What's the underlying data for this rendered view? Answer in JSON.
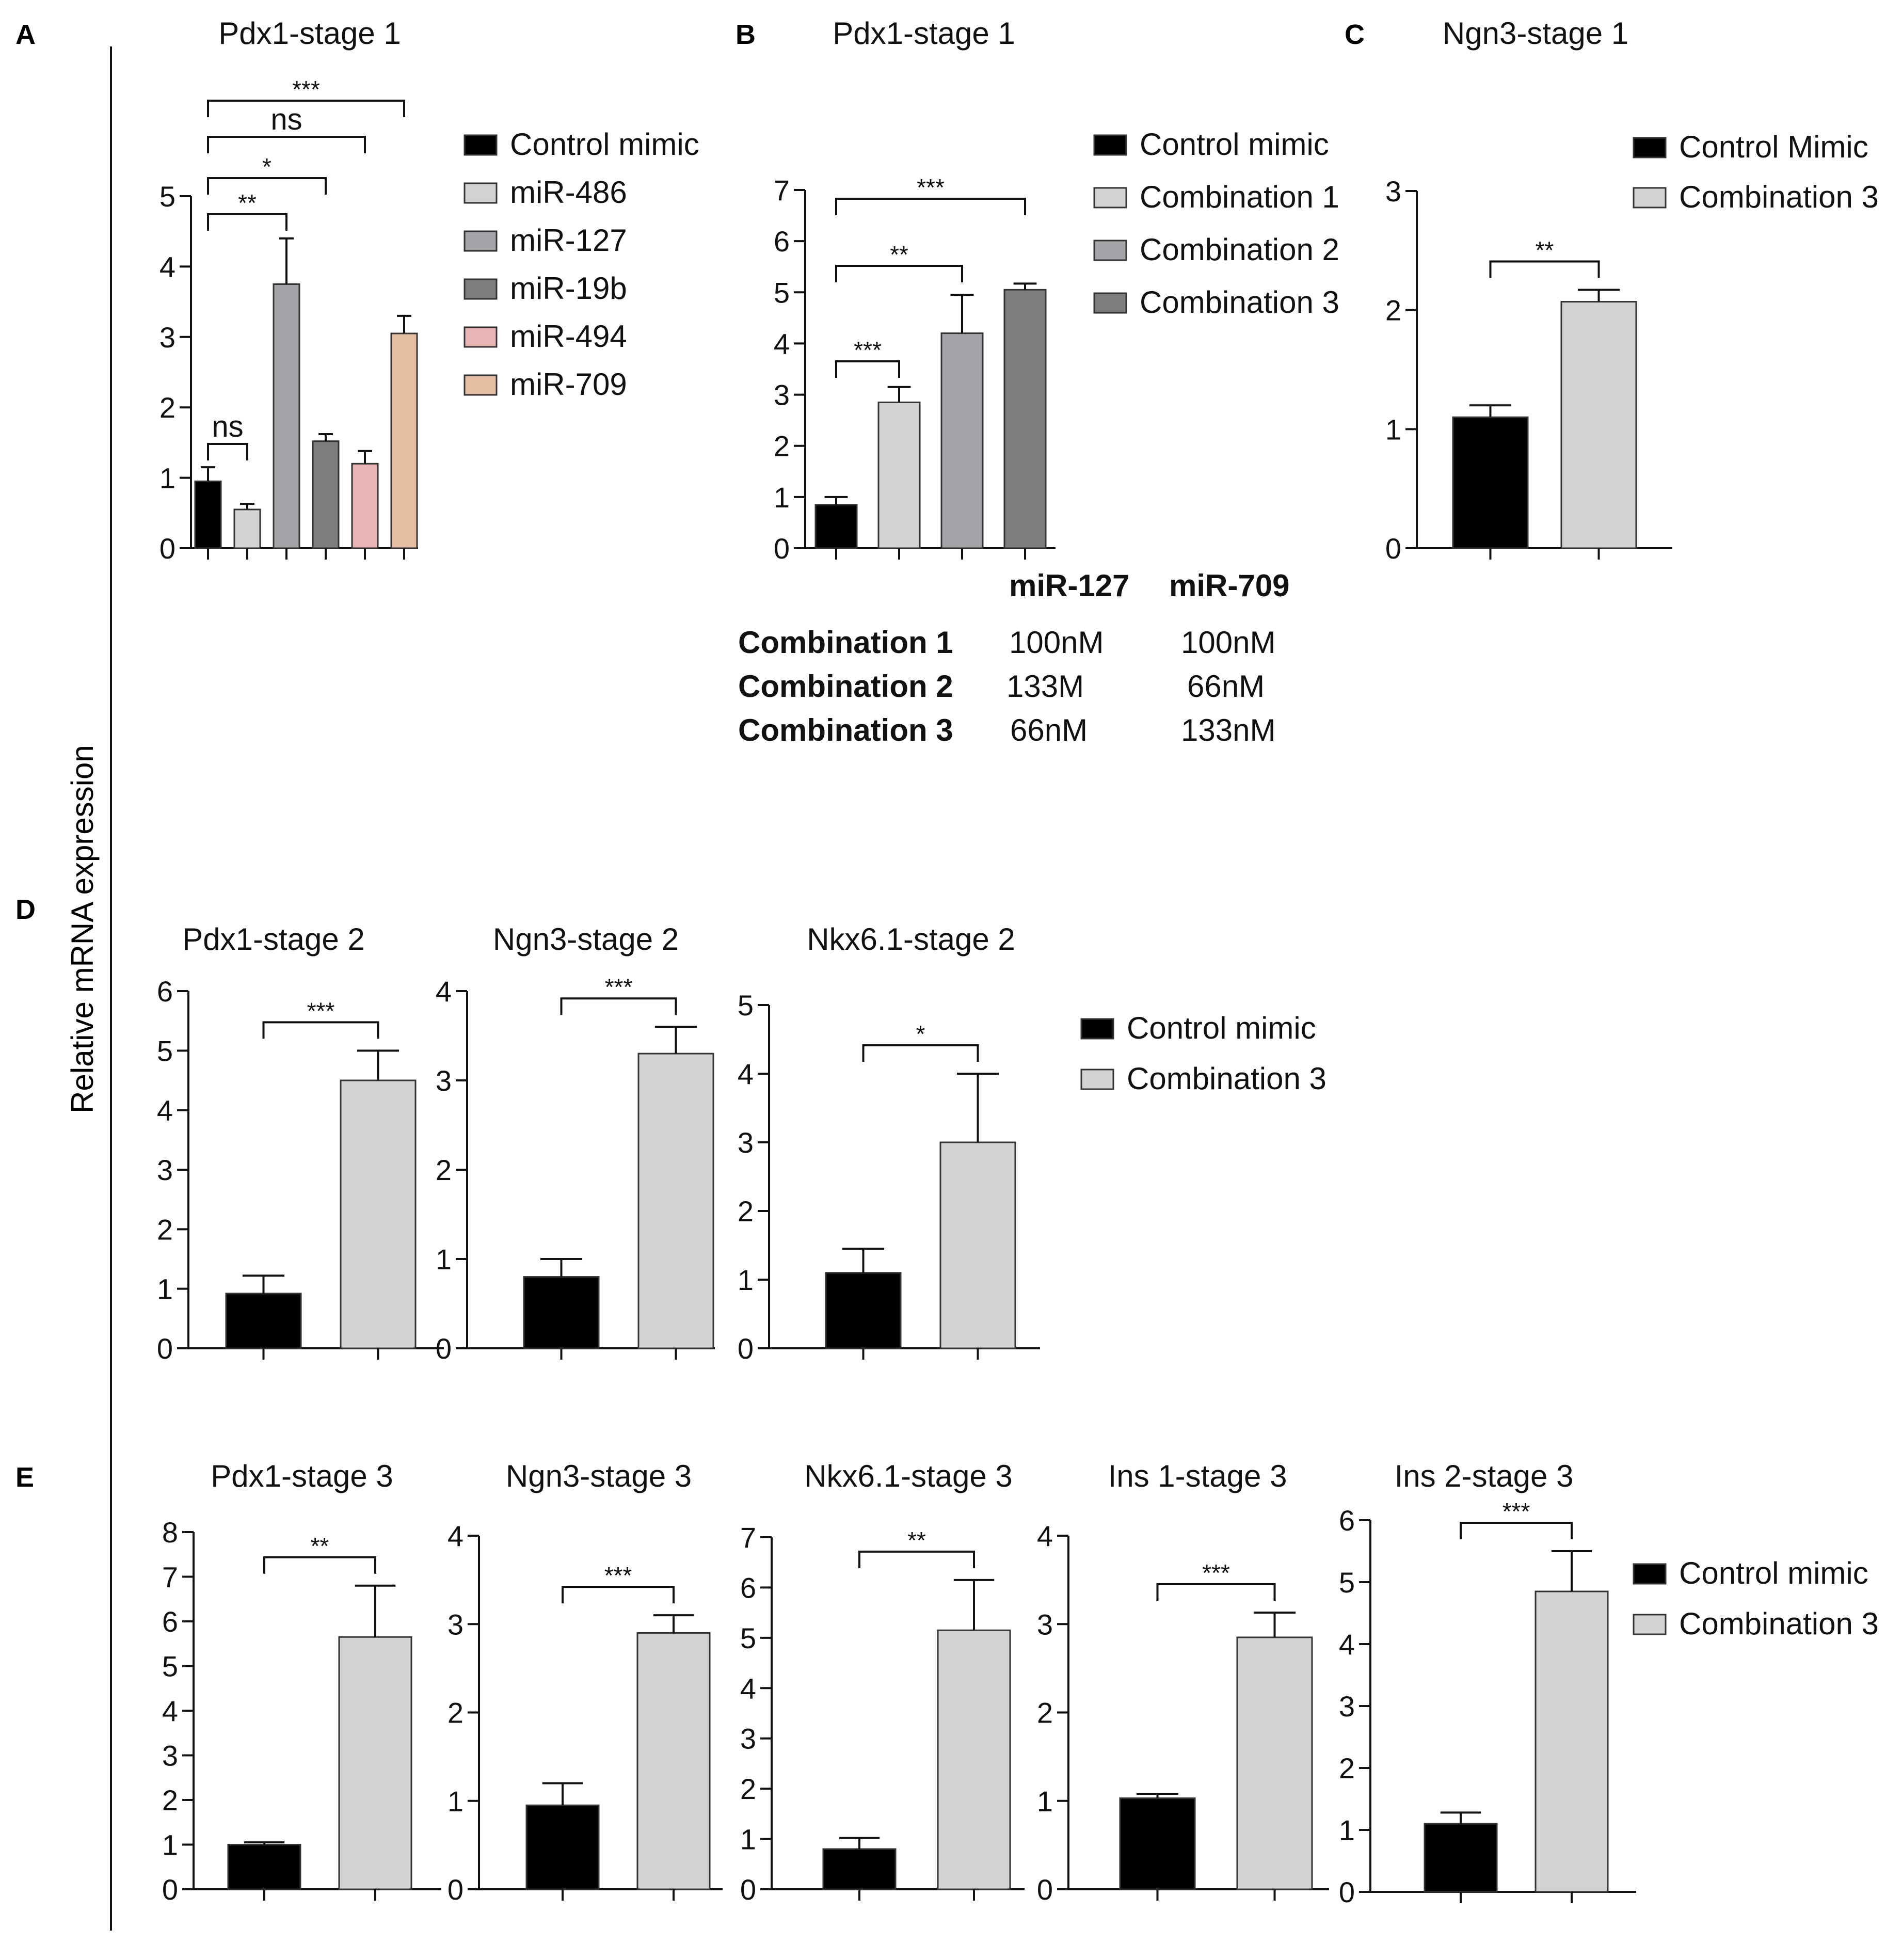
{
  "figure": {
    "shared_ylabel": "Relative mRNA expression",
    "panel_letters": [
      "A",
      "B",
      "C",
      "D",
      "E"
    ]
  },
  "combination_table": {
    "headers": [
      "miR-127",
      "miR-709"
    ],
    "rows": [
      {
        "label": "Combination 1",
        "mir127": "100nM",
        "mir709": "100nM"
      },
      {
        "label": "Combination 2",
        "mir127": "133M",
        "mir709": "66nM"
      },
      {
        "label": "Combination 3",
        "mir127": "66nM",
        "mir709": "133nM"
      }
    ]
  },
  "colors": {
    "black": "#000000",
    "light_gray": "#d3d3d3",
    "mid_gray": "#a3a3a8",
    "dark_gray": "#7d7d7d",
    "pink": "#e8b4b4",
    "peach": "#e6bfa3"
  },
  "chart_data": [
    {
      "id": "A",
      "type": "bar",
      "title": "Pdx1-stage 1",
      "categories": [
        "Control mimic",
        "miR-486",
        "miR-127",
        "miR-19b",
        "miR-494",
        "miR-709"
      ],
      "values": [
        0.95,
        0.55,
        3.75,
        1.52,
        1.2,
        3.05
      ],
      "errors": [
        0.2,
        0.08,
        0.65,
        0.1,
        0.18,
        0.25
      ],
      "colors": [
        "#000000",
        "#d3d3d3",
        "#a3a3a8",
        "#7d7d7d",
        "#e8b4b4",
        "#e6bfa3"
      ],
      "ylim": [
        0,
        5
      ],
      "yticks": [
        0,
        1,
        2,
        3,
        4,
        5
      ],
      "legend": [
        "Control mimic",
        "miR-486",
        "miR-127",
        "miR-19b",
        "miR-494",
        "miR-709"
      ],
      "significance": [
        {
          "from": 0,
          "to": 1,
          "label": "ns"
        },
        {
          "from": 0,
          "to": 2,
          "label": "**"
        },
        {
          "from": 0,
          "to": 3,
          "label": "*"
        },
        {
          "from": 0,
          "to": 4,
          "label": "ns"
        },
        {
          "from": 0,
          "to": 5,
          "label": "***"
        }
      ]
    },
    {
      "id": "B",
      "type": "bar",
      "title": "Pdx1-stage 1",
      "categories": [
        "Control mimic",
        "Combination 1",
        "Combination 2",
        "Combination 3"
      ],
      "values": [
        0.85,
        2.85,
        4.2,
        5.05
      ],
      "errors": [
        0.15,
        0.3,
        0.75,
        0.12
      ],
      "colors": [
        "#000000",
        "#d3d3d3",
        "#a3a3a8",
        "#7d7d7d"
      ],
      "ylim": [
        0,
        7
      ],
      "yticks": [
        0,
        1,
        2,
        3,
        4,
        5,
        6,
        7
      ],
      "legend": [
        "Control mimic",
        "Combination 1",
        "Combination 2",
        "Combination 3"
      ],
      "significance": [
        {
          "from": 0,
          "to": 1,
          "label": "***"
        },
        {
          "from": 0,
          "to": 2,
          "label": "**"
        },
        {
          "from": 0,
          "to": 3,
          "label": "***"
        }
      ]
    },
    {
      "id": "C",
      "type": "bar",
      "title": "Ngn3-stage 1",
      "categories": [
        "Control Mimic",
        "Combination 3"
      ],
      "values": [
        1.1,
        2.07
      ],
      "errors": [
        0.1,
        0.1
      ],
      "colors": [
        "#000000",
        "#d3d3d3"
      ],
      "ylim": [
        0,
        3
      ],
      "yticks": [
        0,
        1,
        2,
        3
      ],
      "legend": [
        "Control Mimic",
        "Combination 3"
      ],
      "significance": [
        {
          "from": 0,
          "to": 1,
          "label": "**"
        }
      ]
    },
    {
      "id": "D1",
      "type": "bar",
      "title": "Pdx1-stage 2",
      "categories": [
        "Control mimic",
        "Combination 3"
      ],
      "values": [
        0.92,
        4.5
      ],
      "errors": [
        0.3,
        0.5
      ],
      "colors": [
        "#000000",
        "#d3d3d3"
      ],
      "ylim": [
        0,
        6
      ],
      "yticks": [
        0,
        1,
        2,
        3,
        4,
        5,
        6
      ],
      "significance": [
        {
          "from": 0,
          "to": 1,
          "label": "***"
        }
      ]
    },
    {
      "id": "D2",
      "type": "bar",
      "title": "Ngn3-stage 2",
      "categories": [
        "Control mimic",
        "Combination 3"
      ],
      "values": [
        0.8,
        3.3
      ],
      "errors": [
        0.2,
        0.3
      ],
      "colors": [
        "#000000",
        "#d3d3d3"
      ],
      "ylim": [
        0,
        4
      ],
      "yticks": [
        0,
        1,
        2,
        3,
        4
      ],
      "significance": [
        {
          "from": 0,
          "to": 1,
          "label": "***"
        }
      ]
    },
    {
      "id": "D3",
      "type": "bar",
      "title": "Nkx6.1-stage 2",
      "categories": [
        "Control mimic",
        "Combination 3"
      ],
      "values": [
        1.1,
        3.0
      ],
      "errors": [
        0.35,
        1.0
      ],
      "colors": [
        "#000000",
        "#d3d3d3"
      ],
      "ylim": [
        0,
        5
      ],
      "yticks": [
        0,
        1,
        2,
        3,
        4,
        5
      ],
      "legend": [
        "Control mimic",
        "Combination 3"
      ],
      "significance": [
        {
          "from": 0,
          "to": 1,
          "label": "*"
        }
      ]
    },
    {
      "id": "E1",
      "type": "bar",
      "title": "Pdx1-stage 3",
      "categories": [
        "Control mimic",
        "Combination 3"
      ],
      "values": [
        1.0,
        5.65
      ],
      "errors": [
        0.05,
        1.15
      ],
      "colors": [
        "#000000",
        "#d3d3d3"
      ],
      "ylim": [
        0,
        8
      ],
      "yticks": [
        0,
        1,
        2,
        3,
        4,
        5,
        6,
        7,
        8
      ],
      "significance": [
        {
          "from": 0,
          "to": 1,
          "label": "**"
        }
      ]
    },
    {
      "id": "E2",
      "type": "bar",
      "title": "Ngn3-stage 3",
      "categories": [
        "Control mimic",
        "Combination 3"
      ],
      "values": [
        0.95,
        2.9
      ],
      "errors": [
        0.25,
        0.2
      ],
      "colors": [
        "#000000",
        "#d3d3d3"
      ],
      "ylim": [
        0,
        4
      ],
      "yticks": [
        0,
        1,
        2,
        3,
        4
      ],
      "significance": [
        {
          "from": 0,
          "to": 1,
          "label": "***"
        }
      ]
    },
    {
      "id": "E3",
      "type": "bar",
      "title": "Nkx6.1-stage 3",
      "categories": [
        "Control mimic",
        "Combination 3"
      ],
      "values": [
        0.8,
        5.15
      ],
      "errors": [
        0.22,
        1.0
      ],
      "colors": [
        "#000000",
        "#d3d3d3"
      ],
      "ylim": [
        0,
        7
      ],
      "yticks": [
        0,
        1,
        2,
        3,
        4,
        5,
        6,
        7
      ],
      "significance": [
        {
          "from": 0,
          "to": 1,
          "label": "**"
        }
      ]
    },
    {
      "id": "E4",
      "type": "bar",
      "title": "Ins 1-stage 3",
      "categories": [
        "Control mimic",
        "Combination 3"
      ],
      "values": [
        1.03,
        2.85
      ],
      "errors": [
        0.05,
        0.28
      ],
      "colors": [
        "#000000",
        "#d3d3d3"
      ],
      "ylim": [
        0,
        4
      ],
      "yticks": [
        0,
        1,
        2,
        3,
        4
      ],
      "significance": [
        {
          "from": 0,
          "to": 1,
          "label": "***"
        }
      ]
    },
    {
      "id": "E5",
      "type": "bar",
      "title": "Ins 2-stage 3",
      "categories": [
        "Control mimic",
        "Combination 3"
      ],
      "values": [
        1.1,
        4.85
      ],
      "errors": [
        0.18,
        0.65
      ],
      "colors": [
        "#000000",
        "#d3d3d3"
      ],
      "ylim": [
        0,
        6
      ],
      "yticks": [
        0,
        1,
        2,
        3,
        4,
        5,
        6
      ],
      "legend": [
        "Control mimic",
        "Combination 3"
      ],
      "significance": [
        {
          "from": 0,
          "to": 1,
          "label": "***"
        }
      ]
    }
  ]
}
